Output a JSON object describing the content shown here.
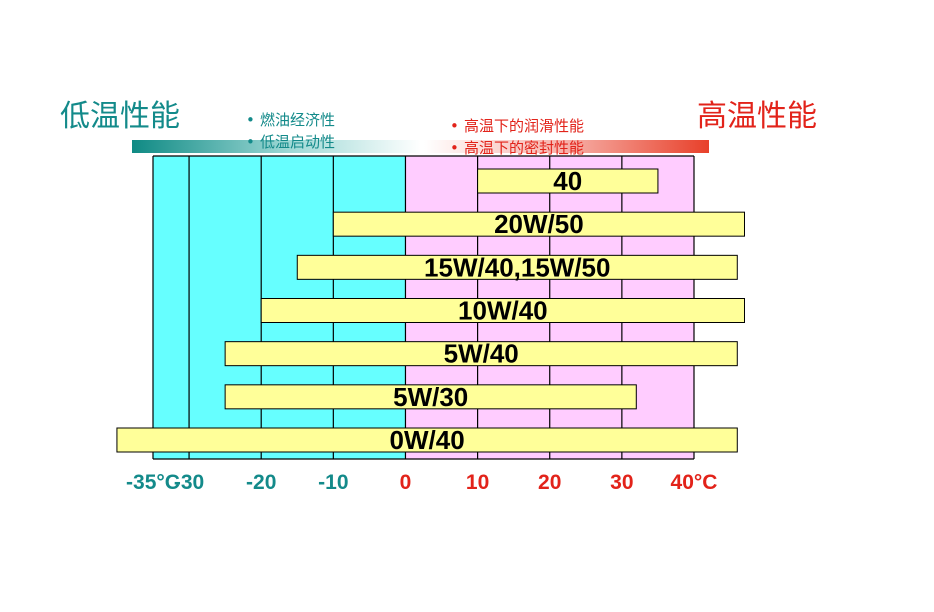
{
  "headers": {
    "low": "低温性能",
    "high": "高温性能"
  },
  "bullets": {
    "low": [
      "燃油经济性",
      "低温启动性"
    ],
    "high": [
      "高温下的润滑性能",
      "高温下的密封性能"
    ]
  },
  "colors": {
    "cold_zone": "#66ffff",
    "hot_zone": "#ffccff",
    "bar_fill": "#ffff99",
    "cold_text": "#138a8a",
    "hot_text": "#e2231a",
    "grid": "#000000"
  },
  "chart_data": {
    "type": "bar",
    "orientation": "horizontal-range",
    "x_unit": "°C",
    "x_ticks": [
      {
        "value": -35,
        "label": "-35°C"
      },
      {
        "value": -30,
        "label": "-30"
      },
      {
        "value": -20,
        "label": "-20"
      },
      {
        "value": -10,
        "label": "-10"
      },
      {
        "value": 0,
        "label": "0"
      },
      {
        "value": 10,
        "label": "10"
      },
      {
        "value": 20,
        "label": "20"
      },
      {
        "value": 30,
        "label": "30"
      },
      {
        "value": 40,
        "label": "40°C"
      }
    ],
    "xlim": [
      -35,
      40
    ],
    "series": [
      {
        "name": "40",
        "low": 10,
        "high": 35
      },
      {
        "name": "20W/50",
        "low": -10,
        "high": 47
      },
      {
        "name": "15W/40,15W/50",
        "low": -15,
        "high": 46
      },
      {
        "name": "10W/40",
        "low": -20,
        "high": 47
      },
      {
        "name": "5W/40",
        "low": -25,
        "high": 46
      },
      {
        "name": "5W/30",
        "low": -25,
        "high": 32
      },
      {
        "name": "0W/40",
        "low": -40,
        "high": 46
      }
    ]
  }
}
